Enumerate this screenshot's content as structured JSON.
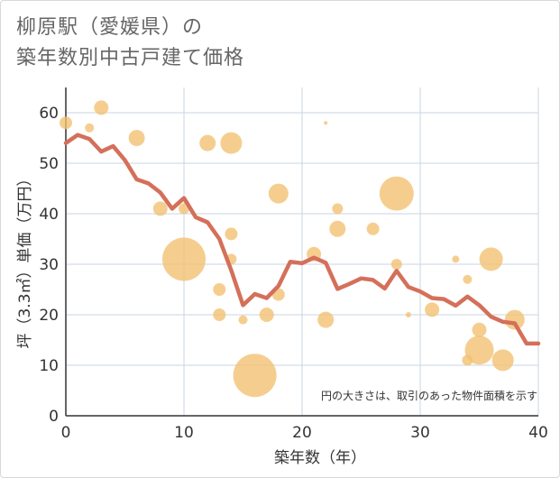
{
  "chart_data": {
    "type": "scatter",
    "title_line1": "柳原駅（愛媛県）の",
    "title_line2": "築年数別中古戸建て価格",
    "xlabel": "築年数（年）",
    "ylabel": "坪（3.3㎡）単価（万円）",
    "xlim": [
      0,
      40
    ],
    "ylim": [
      0,
      65
    ],
    "x_ticks": [
      0,
      10,
      20,
      30,
      40
    ],
    "y_ticks": [
      0,
      10,
      20,
      30,
      40,
      50,
      60
    ],
    "x_tick_labels": [
      "0",
      "10",
      "20",
      "30",
      "40"
    ],
    "y_tick_labels": [
      "0",
      "10",
      "20",
      "30",
      "40",
      "50",
      "60"
    ],
    "grid": true,
    "note": "円の大きさは、取引のあった物件面積を示す",
    "colors": {
      "bubble": "#f2c070",
      "line": "#d4705a",
      "grid": "#c8d4e0"
    },
    "bubbles": [
      {
        "x": 0,
        "y": 58,
        "s": 7
      },
      {
        "x": 2,
        "y": 57,
        "s": 5
      },
      {
        "x": 3,
        "y": 61,
        "s": 8
      },
      {
        "x": 6,
        "y": 55,
        "s": 9
      },
      {
        "x": 8,
        "y": 41,
        "s": 8
      },
      {
        "x": 10,
        "y": 41,
        "s": 6
      },
      {
        "x": 10,
        "y": 31,
        "s": 24
      },
      {
        "x": 12,
        "y": 54,
        "s": 9
      },
      {
        "x": 13,
        "y": 25,
        "s": 7
      },
      {
        "x": 13,
        "y": 20,
        "s": 7
      },
      {
        "x": 14,
        "y": 54,
        "s": 12
      },
      {
        "x": 14,
        "y": 36,
        "s": 7
      },
      {
        "x": 14,
        "y": 31,
        "s": 6
      },
      {
        "x": 15,
        "y": 19,
        "s": 5
      },
      {
        "x": 16,
        "y": 8,
        "s": 24
      },
      {
        "x": 17,
        "y": 20,
        "s": 8
      },
      {
        "x": 18,
        "y": 44,
        "s": 11
      },
      {
        "x": 18,
        "y": 24,
        "s": 7
      },
      {
        "x": 21,
        "y": 32,
        "s": 8
      },
      {
        "x": 22,
        "y": 58,
        "s": 2
      },
      {
        "x": 22,
        "y": 19,
        "s": 9
      },
      {
        "x": 23,
        "y": 41,
        "s": 6
      },
      {
        "x": 23,
        "y": 37,
        "s": 9
      },
      {
        "x": 26,
        "y": 37,
        "s": 7
      },
      {
        "x": 28,
        "y": 44,
        "s": 19
      },
      {
        "x": 28,
        "y": 30,
        "s": 6
      },
      {
        "x": 29,
        "y": 20,
        "s": 3
      },
      {
        "x": 31,
        "y": 21,
        "s": 8
      },
      {
        "x": 33,
        "y": 31,
        "s": 4
      },
      {
        "x": 34,
        "y": 27,
        "s": 5
      },
      {
        "x": 34,
        "y": 11,
        "s": 6
      },
      {
        "x": 35,
        "y": 17,
        "s": 8
      },
      {
        "x": 35,
        "y": 13,
        "s": 16
      },
      {
        "x": 36,
        "y": 31,
        "s": 13
      },
      {
        "x": 37,
        "y": 11,
        "s": 12
      },
      {
        "x": 38,
        "y": 19,
        "s": 11
      }
    ],
    "trend": {
      "x": [
        0,
        1,
        2,
        3,
        4,
        5,
        6,
        7,
        8,
        9,
        10,
        11,
        12,
        13,
        14,
        15,
        16,
        17,
        18,
        19,
        20,
        21,
        22,
        23,
        24,
        25,
        26,
        27,
        28,
        29,
        30,
        31,
        32,
        33,
        34,
        35,
        36,
        37,
        38,
        39,
        40
      ],
      "y": [
        54,
        55.6,
        54.8,
        52.3,
        53.4,
        50.6,
        46.8,
        46,
        44.2,
        41,
        43.1,
        39.3,
        38.3,
        35,
        28.8,
        21.9,
        24.1,
        23.3,
        25.7,
        30.5,
        30.2,
        31.3,
        30.3,
        25.1,
        26.1,
        27.2,
        26.9,
        25.2,
        28.7,
        25.5,
        24.6,
        23.3,
        23.1,
        21.8,
        23.6,
        21.9,
        19.6,
        18.6,
        18.3,
        14.3,
        14.3
      ]
    }
  }
}
